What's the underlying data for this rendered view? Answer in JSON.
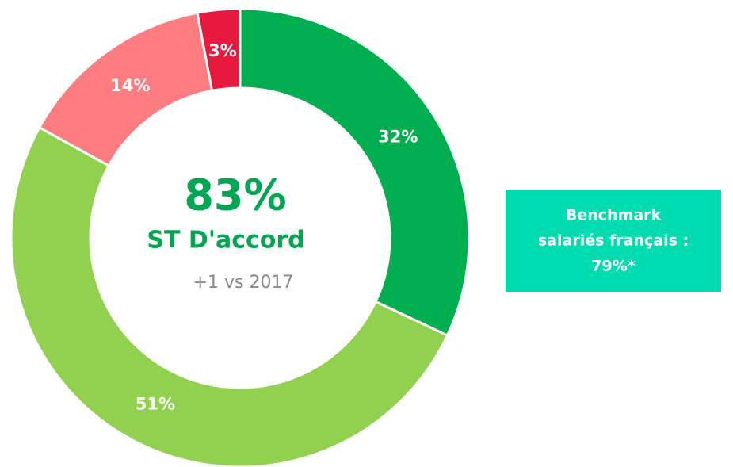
{
  "chart_data": {
    "type": "donut",
    "values": [
      32,
      51,
      14,
      3
    ],
    "value_labels": [
      "32%",
      "51%",
      "14%",
      "3%"
    ],
    "colors": [
      "#00ad4f",
      "#92d050",
      "#ff7c80",
      "#e8193f"
    ],
    "center_text": [
      "83%",
      "ST D'accord",
      "+1 vs 2017"
    ],
    "benchmark": [
      "Benchmark",
      "salariés français :",
      "79%*"
    ]
  }
}
